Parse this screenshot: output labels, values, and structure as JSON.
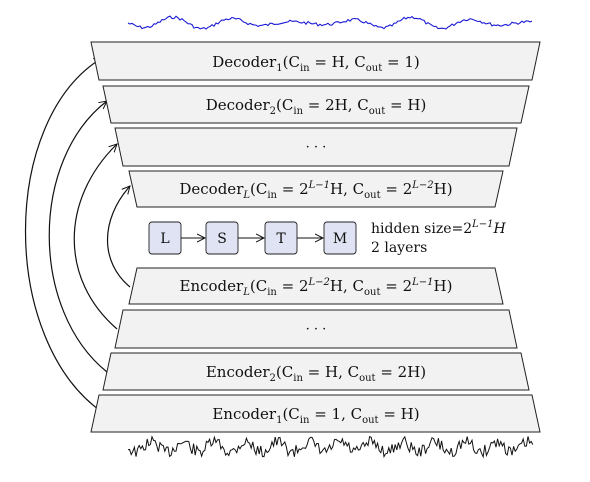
{
  "colors": {
    "output_wave": "#1b1bd6",
    "input_wave": "#111111",
    "layer_fill": "#f2f2f2",
    "lstm_fill": "#dfe3f3"
  },
  "layers": {
    "decoder_1": {
      "name": "Decoder",
      "sub": "1",
      "args": "(C",
      "cin_sub": "in",
      "eq1": " = H, C",
      "cout_sub": "out",
      "eq2": " = 1)"
    },
    "decoder_2": {
      "name": "Decoder",
      "sub": "2",
      "args": "(C",
      "cin_sub": "in",
      "eq1": " = 2H, C",
      "cout_sub": "out",
      "eq2": " = H)"
    },
    "decoder_dots": "· · ·",
    "decoder_L": {
      "name": "Decoder",
      "sub": "L",
      "args": "(C",
      "cin_sub": "in",
      "eq1": " = 2",
      "sup1": "L−1",
      "eq1b": "H, C",
      "cout_sub": "out",
      "eq2": " = 2",
      "sup2": "L−2",
      "eq2b": "H)"
    },
    "encoder_L": {
      "name": "Encoder",
      "sub": "L",
      "args": "(C",
      "cin_sub": "in",
      "eq1": " = 2",
      "sup1": "L−2",
      "eq1b": "H, C",
      "cout_sub": "out",
      "eq2": " = 2",
      "sup2": "L−1",
      "eq2b": "H)"
    },
    "encoder_dots": "· · ·",
    "encoder_2": {
      "name": "Encoder",
      "sub": "2",
      "args": "(C",
      "cin_sub": "in",
      "eq1": " = H, C",
      "cout_sub": "out",
      "eq2": " = 2H)"
    },
    "encoder_1": {
      "name": "Encoder",
      "sub": "1",
      "args": "(C",
      "cin_sub": "in",
      "eq1": " = 1, C",
      "cout_sub": "out",
      "eq2": " = H)"
    }
  },
  "lstm": {
    "letters": [
      "L",
      "S",
      "T",
      "M"
    ],
    "hidden_size_label": "hidden size=2",
    "hidden_size_sup": "L−1",
    "hidden_size_tail": "H",
    "layers_label": "2 layers"
  }
}
